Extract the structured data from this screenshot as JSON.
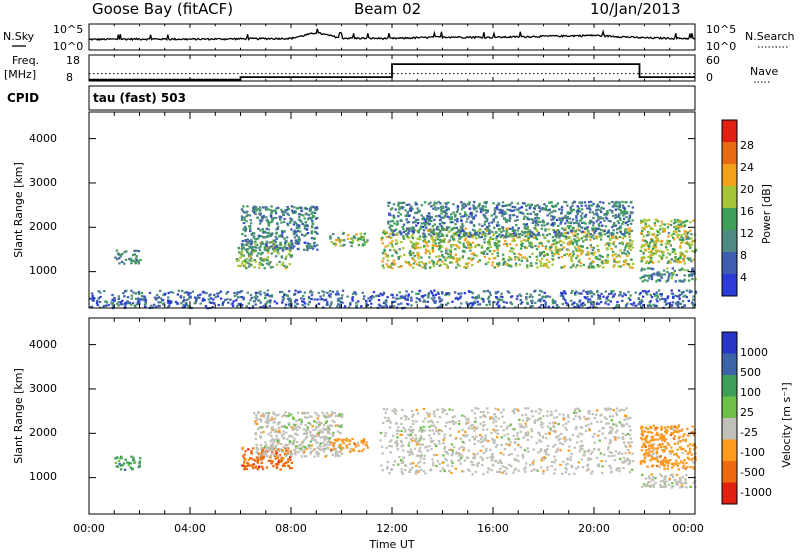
{
  "header": {
    "station": "Goose Bay (fitACF)",
    "beam": "Beam 02",
    "date": "10/Jan/2013"
  },
  "summary_panels": {
    "nsky_label": "N.Sky",
    "nsearch_label": "N.Search",
    "noise_ticks_left": [
      "10^5",
      "10^0"
    ],
    "noise_ticks_right": [
      "10^5",
      "10^0"
    ],
    "freq_label_top": "Freq.",
    "freq_label_unit": "[MHz]",
    "freq_ticks": [
      "18",
      "8"
    ],
    "nave_label": "Nave",
    "nave_ticks": [
      "60",
      "0"
    ],
    "cpid_label": "CPID",
    "cpid_value": "tau (fast) 503"
  },
  "time_axis": {
    "label": "Time UT",
    "ticks": [
      "00:00",
      "04:00",
      "08:00",
      "12:00",
      "16:00",
      "20:00",
      "00:00"
    ]
  },
  "chart_data": [
    {
      "type": "line",
      "title": "",
      "xlabel": "",
      "ylabel": "N.Sky",
      "y_scale": "log",
      "ylim": [
        1,
        100000
      ],
      "x": [
        0,
        2,
        4,
        6,
        8,
        9,
        10,
        12,
        14,
        16,
        18,
        20,
        22,
        24
      ],
      "series": [
        {
          "name": "N.Sky",
          "values": [
            100,
            120,
            110,
            130,
            160,
            2000,
            180,
            150,
            300,
            250,
            400,
            600,
            200,
            150
          ]
        }
      ]
    },
    {
      "type": "line",
      "title": "",
      "xlabel": "",
      "ylabel": "Freq. [MHz]",
      "ylim": [
        8,
        18
      ],
      "y2label": "Nave",
      "y2lim": [
        0,
        60
      ],
      "series": [
        {
          "name": "Freq.",
          "x": [
            0,
            6,
            6,
            12,
            12,
            21.8,
            21.8,
            24
          ],
          "values": [
            8.5,
            8.5,
            9.5,
            9.5,
            14.5,
            14.5,
            9.5,
            9.5
          ]
        },
        {
          "name": "Nave",
          "x": [
            0,
            24
          ],
          "values": [
            17,
            17
          ]
        }
      ]
    },
    {
      "type": "heatmap",
      "title": "",
      "xlabel": "Time UT",
      "ylabel": "Slant Range [km]",
      "xlim": [
        0,
        24
      ],
      "ylim": [
        180,
        4600
      ],
      "yticks": [
        "1000",
        "2000",
        "3000",
        "4000"
      ],
      "colorbar": {
        "label": "Power [dB]",
        "ticks": [
          "4",
          "8",
          "12",
          "16",
          "20",
          "24",
          "28"
        ],
        "range": [
          0,
          30
        ]
      },
      "echo_regions": [
        {
          "t": [
            0,
            24
          ],
          "r": [
            200,
            600
          ],
          "level": 5
        },
        {
          "t": [
            1.0,
            2.0
          ],
          "r": [
            1200,
            1500
          ],
          "level": 9
        },
        {
          "t": [
            5.8,
            8.0
          ],
          "r": [
            1100,
            1700
          ],
          "level": 14
        },
        {
          "t": [
            6.0,
            9.0
          ],
          "r": [
            1500,
            2500
          ],
          "level": 8
        },
        {
          "t": [
            9.5,
            11.0
          ],
          "r": [
            1600,
            1900
          ],
          "level": 14
        },
        {
          "t": [
            11.5,
            21.5
          ],
          "r": [
            1100,
            2000
          ],
          "level": 16
        },
        {
          "t": [
            11.8,
            21.5
          ],
          "r": [
            1800,
            2600
          ],
          "level": 8
        },
        {
          "t": [
            21.8,
            24
          ],
          "r": [
            1200,
            2200
          ],
          "level": 16
        },
        {
          "t": [
            21.8,
            24
          ],
          "r": [
            800,
            1100
          ],
          "level": 9
        }
      ]
    },
    {
      "type": "heatmap",
      "title": "",
      "xlabel": "Time UT",
      "ylabel": "Slant Range [km]",
      "xlim": [
        0,
        24
      ],
      "ylim": [
        180,
        4600
      ],
      "yticks": [
        "1000",
        "2000",
        "3000",
        "4000"
      ],
      "colorbar": {
        "label": "Velocity [m s⁻¹]",
        "ticks": [
          "1000",
          "500",
          "100",
          "25",
          "-25",
          "-100",
          "-500",
          "-1000"
        ]
      },
      "echo_regions": [
        {
          "t": [
            1.0,
            2.0
          ],
          "r": [
            1200,
            1500
          ],
          "velocity": 300
        },
        {
          "t": [
            6.0,
            8.0
          ],
          "r": [
            1200,
            1700
          ],
          "velocity": -300
        },
        {
          "t": [
            6.5,
            10.0
          ],
          "r": [
            1500,
            2500
          ],
          "velocity": 0
        },
        {
          "t": [
            9.5,
            11.0
          ],
          "r": [
            1600,
            1900
          ],
          "velocity": -200
        },
        {
          "t": [
            11.5,
            21.5
          ],
          "r": [
            1100,
            2600
          ],
          "velocity": 0
        },
        {
          "t": [
            21.8,
            24
          ],
          "r": [
            1200,
            2200
          ],
          "velocity": -150
        },
        {
          "t": [
            21.8,
            24
          ],
          "r": [
            800,
            1100
          ],
          "velocity": 0
        }
      ]
    }
  ],
  "colors": {
    "power_scale": [
      "#2a3bd7",
      "#3f5db0",
      "#4f8a82",
      "#3d9f58",
      "#a5c536",
      "#f2a21a",
      "#e86a14",
      "#e02010"
    ],
    "velocity_scale": [
      "#2836c8",
      "#3d64a8",
      "#3d9f58",
      "#6dc04a",
      "#c0c0b8",
      "#ff9a20",
      "#ee6a10",
      "#e02010"
    ]
  }
}
